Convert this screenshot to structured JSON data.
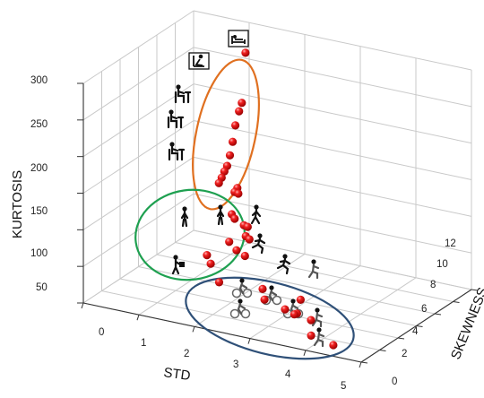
{
  "chart_data": {
    "type": "scatter",
    "projection": "3d",
    "xlabel": "STD",
    "ylabel": "SKEWNESS",
    "zlabel": "KURTOSIS",
    "xlim": [
      0,
      5
    ],
    "ylim": [
      0,
      12
    ],
    "zlim": [
      0,
      300
    ],
    "xticks": [
      "0",
      "1",
      "2",
      "3",
      "4",
      "5"
    ],
    "yticks": [
      "0",
      "2",
      "4",
      "6",
      "8",
      "10",
      "12"
    ],
    "zticks": [
      "50",
      "100",
      "150",
      "200",
      "250",
      "300"
    ],
    "grid": true,
    "marker_color": "#e01010",
    "points": [
      [
        1.0,
        11.6,
        262
      ],
      [
        1.0,
        11.2,
        197
      ],
      [
        1.0,
        10.9,
        188
      ],
      [
        1.0,
        10.5,
        172
      ],
      [
        1.0,
        10.2,
        152
      ],
      [
        1.0,
        9.9,
        136
      ],
      [
        1.0,
        9.6,
        124
      ],
      [
        1.0,
        9.3,
        119
      ],
      [
        1.0,
        9.0,
        113
      ],
      [
        1.0,
        8.7,
        108
      ],
      [
        1.2,
        9.5,
        98
      ],
      [
        1.2,
        9.2,
        95
      ],
      [
        1.3,
        9.0,
        96
      ],
      [
        1.2,
        8.9,
        67
      ],
      [
        1.3,
        8.6,
        65
      ],
      [
        1.5,
        8.4,
        61
      ],
      [
        1.6,
        8.2,
        62
      ],
      [
        1.6,
        8.0,
        51
      ],
      [
        1.7,
        7.8,
        50
      ],
      [
        1.4,
        7.4,
        45
      ],
      [
        1.6,
        7.0,
        40
      ],
      [
        1.8,
        6.7,
        38
      ],
      [
        1.1,
        6.8,
        27
      ],
      [
        1.3,
        6.0,
        25
      ],
      [
        1.6,
        5.1,
        12
      ],
      [
        2.3,
        5.6,
        10
      ],
      [
        2.5,
        4.6,
        7
      ],
      [
        3.1,
        4.9,
        14
      ],
      [
        3.1,
        3.2,
        15
      ],
      [
        3.2,
        3.9,
        5
      ],
      [
        3.3,
        3.0,
        13
      ],
      [
        3.6,
        3.0,
        10
      ],
      [
        3.8,
        1.8,
        2
      ],
      [
        4.3,
        1.2,
        2
      ]
    ],
    "clusters": [
      {
        "color": "#e07020",
        "markers": [
          "bed-icon",
          "reclining-icon",
          "sitting-icon",
          "desk-sitting-icon",
          "desk-sitting-icon"
        ]
      },
      {
        "color": "#1ea050",
        "markers": [
          "standing-icon",
          "standing-icon",
          "walking-icon",
          "carrying-icon",
          "carrying-icon"
        ]
      },
      {
        "color": "#2f5078",
        "markers": [
          "running-icon",
          "running-icon",
          "cycling-icon",
          "cycling-icon",
          "cycling-icon",
          "cycling-icon",
          "stepping-icon",
          "stepping-icon"
        ]
      }
    ]
  }
}
